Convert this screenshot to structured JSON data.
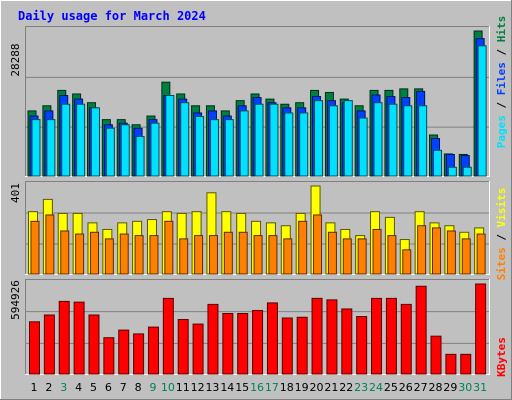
{
  "title": "Daily usage for March 2024",
  "colors": {
    "frame": "#c0c0c0",
    "plot_bg": "#c0c0c0",
    "title": "#0000ff",
    "hits": "#008040",
    "files": "#0040ff",
    "pages": "#00e0ff",
    "visits": "#ffff00",
    "sites": "#ff8000",
    "kbytes": "#ff0000",
    "weekend_label": "#00805c",
    "weekday_label": "#000000"
  },
  "legend": {
    "top": [
      "Hits",
      "Files",
      "Pages"
    ],
    "middle": [
      "Visits",
      "Sites"
    ],
    "bottom": [
      "KBytes"
    ]
  },
  "axis_max_labels": {
    "top": "28288",
    "middle": "401",
    "bottom": "594926"
  },
  "chart_data": [
    {
      "type": "bar",
      "name": "hits-files-pages",
      "categories": [
        "1",
        "2",
        "3",
        "4",
        "5",
        "6",
        "7",
        "8",
        "9",
        "10",
        "11",
        "12",
        "13",
        "14",
        "15",
        "16",
        "17",
        "18",
        "19",
        "20",
        "21",
        "22",
        "23",
        "24",
        "25",
        "26",
        "27",
        "28",
        "29",
        "30",
        "31"
      ],
      "ylim": [
        0,
        28288
      ],
      "weekend_days": [
        "3",
        "9",
        "10",
        "16",
        "17",
        "23",
        "24",
        "30",
        "31"
      ],
      "series": [
        {
          "name": "Hits",
          "values": [
            12700,
            13700,
            16700,
            16000,
            14300,
            11000,
            11000,
            10000,
            11700,
            18300,
            16000,
            13700,
            13700,
            12700,
            14700,
            16000,
            15000,
            14000,
            14300,
            16700,
            16300,
            15000,
            13700,
            16700,
            16700,
            17000,
            17000,
            8000,
            4300,
            4200,
            28288
          ]
        },
        {
          "name": "Files",
          "values": [
            11700,
            12700,
            15700,
            15000,
            13300,
            10000,
            10300,
            9300,
            11000,
            15700,
            15000,
            12300,
            12700,
            11700,
            13700,
            15300,
            14300,
            13300,
            13300,
            15500,
            14700,
            14300,
            12700,
            15800,
            15500,
            15300,
            16500,
            7300,
            4200,
            4000,
            26800
          ]
        },
        {
          "name": "Pages",
          "values": [
            11000,
            11000,
            14000,
            14000,
            13300,
            9300,
            10000,
            7700,
            10300,
            15700,
            14300,
            11600,
            11000,
            11000,
            12700,
            14000,
            14000,
            12300,
            12300,
            14700,
            13700,
            14700,
            11300,
            14300,
            14000,
            13700,
            13700,
            5000,
            1700,
            1700,
            25400
          ]
        }
      ]
    },
    {
      "type": "bar",
      "name": "visits-sites",
      "categories": [
        "1",
        "2",
        "3",
        "4",
        "5",
        "6",
        "7",
        "8",
        "9",
        "10",
        "11",
        "12",
        "13",
        "14",
        "15",
        "16",
        "17",
        "18",
        "19",
        "20",
        "21",
        "22",
        "23",
        "24",
        "25",
        "26",
        "27",
        "28",
        "29",
        "30",
        "31"
      ],
      "ylim": [
        0,
        401
      ],
      "series": [
        {
          "name": "Visits",
          "values": [
            284,
            340,
            276,
            276,
            233,
            203,
            233,
            240,
            248,
            284,
            276,
            284,
            370,
            284,
            276,
            240,
            233,
            220,
            276,
            401,
            233,
            203,
            175,
            284,
            258,
            157,
            284,
            233,
            220,
            190,
            210
          ]
        },
        {
          "name": "Sites",
          "values": [
            240,
            269,
            196,
            182,
            190,
            160,
            182,
            175,
            175,
            240,
            160,
            175,
            175,
            190,
            190,
            175,
            175,
            160,
            240,
            269,
            190,
            160,
            160,
            203,
            175,
            110,
            220,
            210,
            196,
            160,
            182
          ]
        }
      ]
    },
    {
      "type": "bar",
      "name": "kbytes",
      "categories": [
        "1",
        "2",
        "3",
        "4",
        "5",
        "6",
        "7",
        "8",
        "9",
        "10",
        "11",
        "12",
        "13",
        "14",
        "15",
        "16",
        "17",
        "18",
        "19",
        "20",
        "21",
        "22",
        "23",
        "24",
        "25",
        "26",
        "27",
        "28",
        "29",
        "30",
        "31"
      ],
      "ylim": [
        0,
        594926
      ],
      "series": [
        {
          "name": "KBytes",
          "values": [
            345000,
            390000,
            480000,
            475000,
            390000,
            240000,
            290000,
            265000,
            310000,
            500000,
            360000,
            330000,
            460000,
            400000,
            400000,
            420000,
            470000,
            370000,
            375000,
            500000,
            490000,
            430000,
            380000,
            500000,
            500000,
            460000,
            580000,
            250000,
            130000,
            130000,
            594926
          ]
        }
      ]
    }
  ]
}
